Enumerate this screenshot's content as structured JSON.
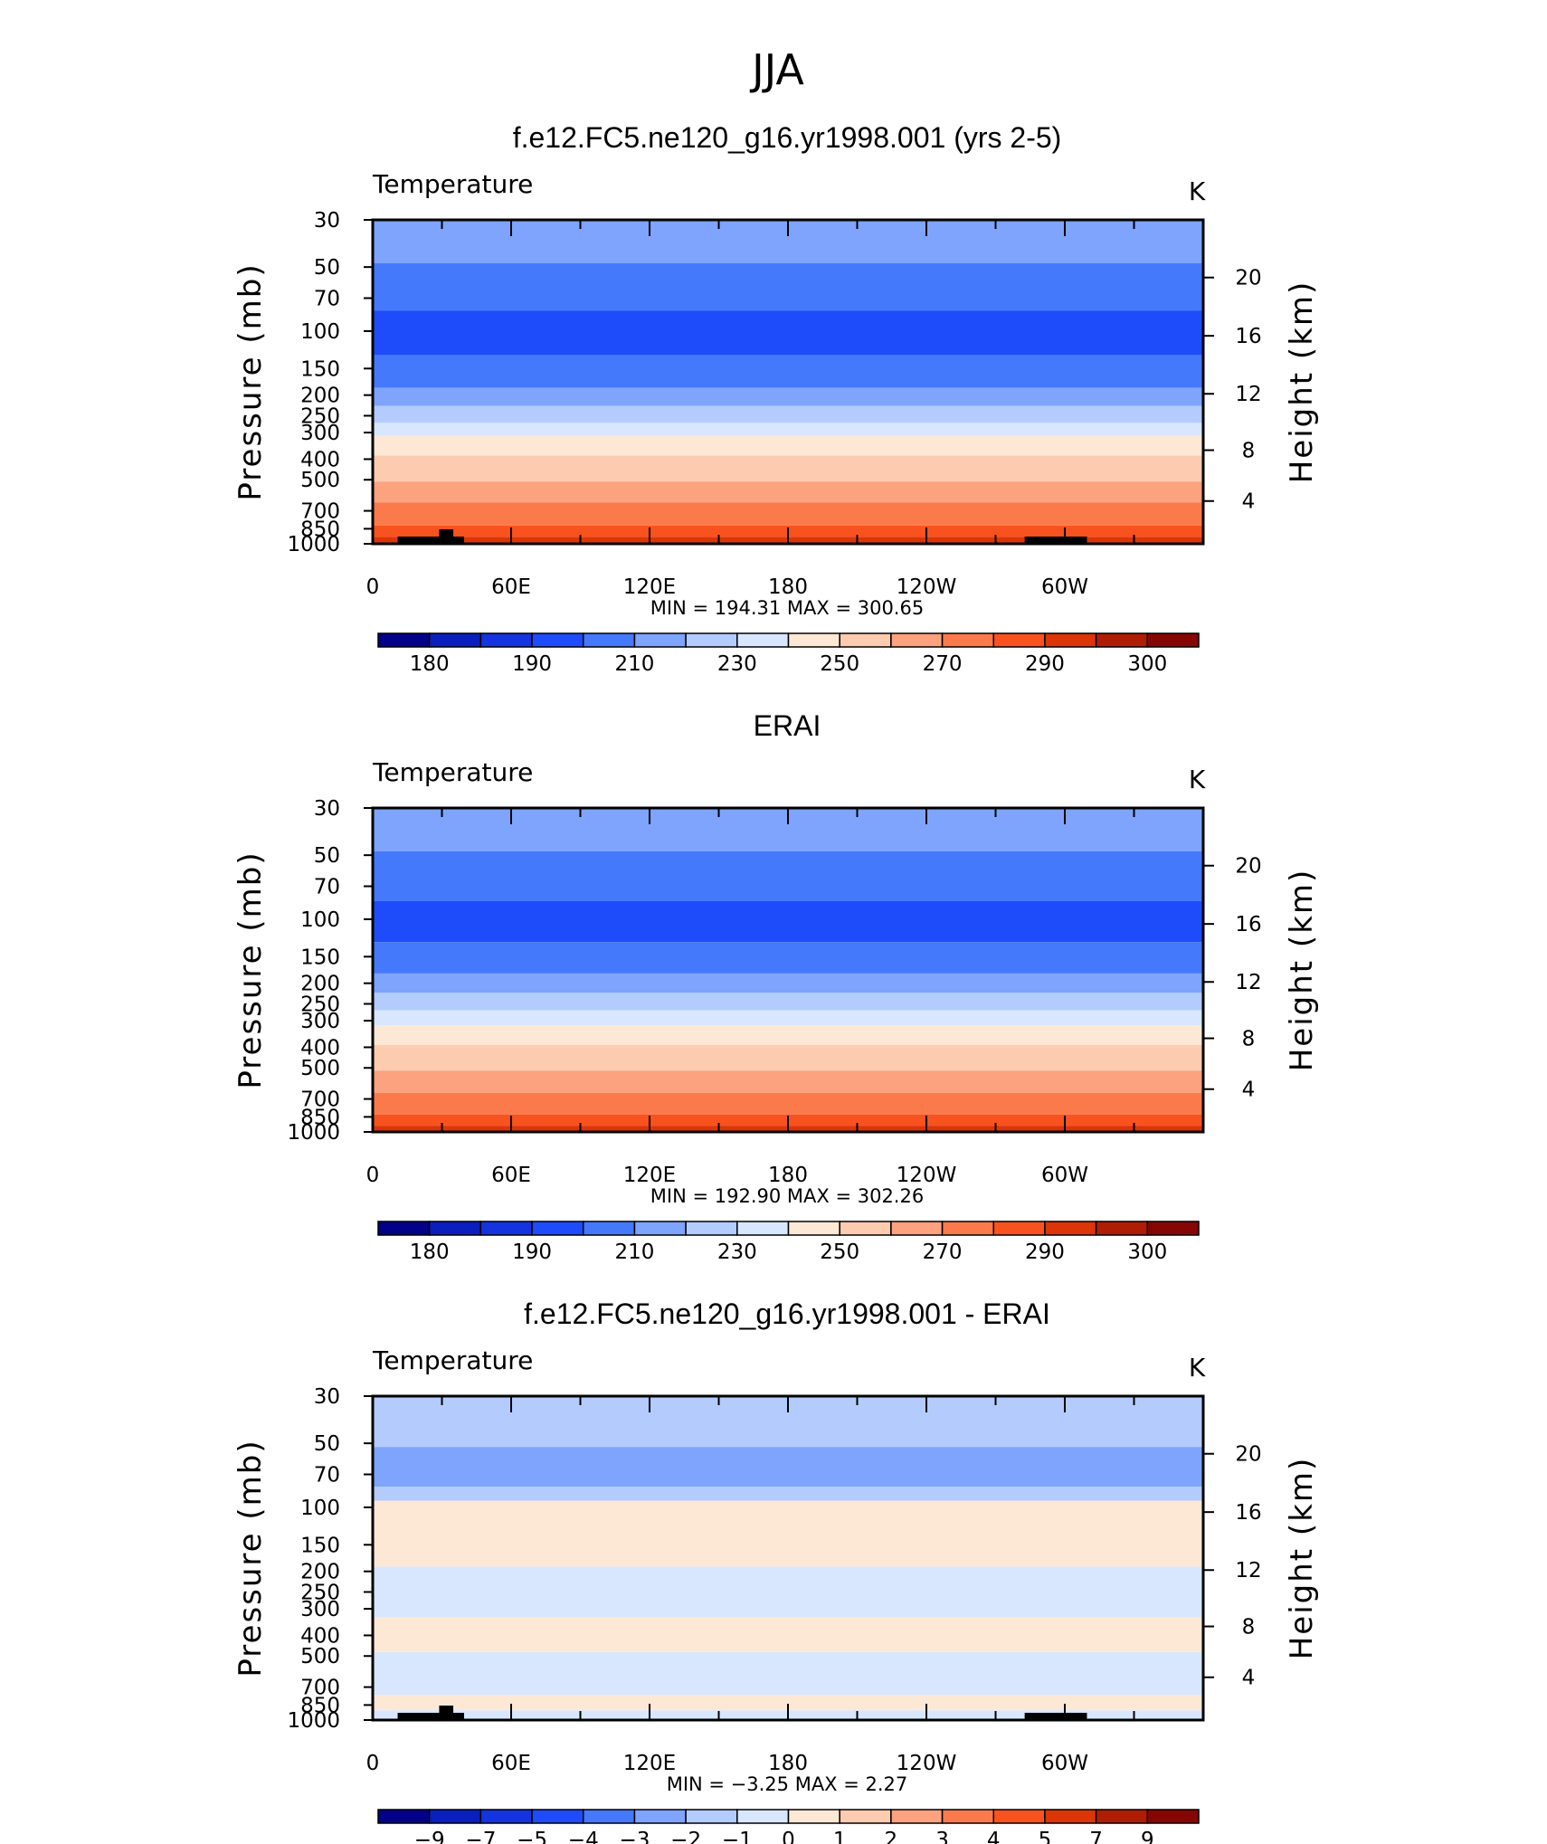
{
  "page": {
    "suptitle": "JJA"
  },
  "chart_data": [
    {
      "type": "heatmap",
      "title": "f.e12.FC5.ne120_g16.yr1998.001 (yrs 2-5)",
      "variable": "Temperature",
      "units": "K",
      "ylabel": "Pressure (mb)",
      "ylabel_right": "Height (km)",
      "x_tick_labels": [
        "0",
        "60E",
        "120E",
        "180",
        "120W",
        "60W"
      ],
      "y_tick_labels": [
        "30",
        "50",
        "70",
        "100",
        "150",
        "200",
        "250",
        "300",
        "400",
        "500",
        "700",
        "850",
        "1000"
      ],
      "right_tick_labels": [
        "20",
        "16",
        "12",
        "8",
        "4"
      ],
      "stats": "MIN  =  194.31    MAX  =  300.65",
      "min": 194.31,
      "max": 300.65,
      "colorbar_labels": [
        "180",
        "190",
        "210",
        "230",
        "250",
        "270",
        "290",
        "300"
      ],
      "colorbar_colors": [
        "#03008a",
        "#0a1fbe",
        "#1434e0",
        "#1e4cfa",
        "#4579fc",
        "#7ea4fd",
        "#b3cbfd",
        "#d8e7fe",
        "#fde8d6",
        "#fdcbb0",
        "#fca27e",
        "#fb7a4c",
        "#f8521f",
        "#dc3508",
        "#b01d05",
        "#860603"
      ],
      "bands": [
        {
          "top": 30,
          "color": "#7ea4fd"
        },
        {
          "top": 48,
          "color": "#4579fc"
        },
        {
          "top": 80,
          "color": "#1e4cfa"
        },
        {
          "top": 130,
          "color": "#4579fc"
        },
        {
          "top": 185,
          "color": "#7ea4fd"
        },
        {
          "top": 225,
          "color": "#b3cbfd"
        },
        {
          "top": 270,
          "color": "#d8e7fe"
        },
        {
          "top": 310,
          "color": "#fde8d6"
        },
        {
          "top": 385,
          "color": "#fdcbb0"
        },
        {
          "top": 510,
          "color": "#fca27e"
        },
        {
          "top": 640,
          "color": "#fb7a4c"
        },
        {
          "top": 820,
          "color": "#f8521f"
        },
        {
          "top": 930,
          "color": "#dc3508"
        },
        {
          "top": 985,
          "color": "#b01d05"
        }
      ],
      "terrain": true
    },
    {
      "type": "heatmap",
      "title": "ERAI",
      "variable": "Temperature",
      "units": "K",
      "ylabel": "Pressure (mb)",
      "ylabel_right": "Height (km)",
      "x_tick_labels": [
        "0",
        "60E",
        "120E",
        "180",
        "120W",
        "60W"
      ],
      "y_tick_labels": [
        "30",
        "50",
        "70",
        "100",
        "150",
        "200",
        "250",
        "300",
        "400",
        "500",
        "700",
        "850",
        "1000"
      ],
      "right_tick_labels": [
        "20",
        "16",
        "12",
        "8",
        "4"
      ],
      "stats": "MIN  =  192.90    MAX  =  302.26",
      "min": 192.9,
      "max": 302.26,
      "colorbar_labels": [
        "180",
        "190",
        "210",
        "230",
        "250",
        "270",
        "290",
        "300"
      ],
      "colorbar_colors": [
        "#03008a",
        "#0a1fbe",
        "#1434e0",
        "#1e4cfa",
        "#4579fc",
        "#7ea4fd",
        "#b3cbfd",
        "#d8e7fe",
        "#fde8d6",
        "#fdcbb0",
        "#fca27e",
        "#fb7a4c",
        "#f8521f",
        "#dc3508",
        "#b01d05",
        "#860603"
      ],
      "bands": [
        {
          "top": 30,
          "color": "#7ea4fd"
        },
        {
          "top": 48,
          "color": "#4579fc"
        },
        {
          "top": 82,
          "color": "#1e4cfa"
        },
        {
          "top": 128,
          "color": "#4579fc"
        },
        {
          "top": 180,
          "color": "#7ea4fd"
        },
        {
          "top": 222,
          "color": "#b3cbfd"
        },
        {
          "top": 268,
          "color": "#d8e7fe"
        },
        {
          "top": 315,
          "color": "#fde8d6"
        },
        {
          "top": 390,
          "color": "#fdcbb0"
        },
        {
          "top": 515,
          "color": "#fca27e"
        },
        {
          "top": 655,
          "color": "#fb7a4c"
        },
        {
          "top": 830,
          "color": "#f8521f"
        },
        {
          "top": 935,
          "color": "#dc3508"
        },
        {
          "top": 990,
          "color": "#b01d05"
        }
      ],
      "terrain": false
    },
    {
      "type": "heatmap",
      "title": "f.e12.FC5.ne120_g16.yr1998.001 - ERAI",
      "variable": "Temperature",
      "units": "K",
      "ylabel": "Pressure (mb)",
      "ylabel_right": "Height (km)",
      "x_tick_labels": [
        "0",
        "60E",
        "120E",
        "180",
        "120W",
        "60W"
      ],
      "y_tick_labels": [
        "30",
        "50",
        "70",
        "100",
        "150",
        "200",
        "250",
        "300",
        "400",
        "500",
        "700",
        "850",
        "1000"
      ],
      "right_tick_labels": [
        "20",
        "16",
        "12",
        "8",
        "4"
      ],
      "stats": "MIN  =    −3.25    MAX  =      2.27",
      "min": -3.25,
      "max": 2.27,
      "colorbar_labels": [
        "−9",
        "−7",
        "−5",
        "−4",
        "−3",
        "−2",
        "−1",
        "0",
        "1",
        "2",
        "3",
        "4",
        "5",
        "7",
        "9"
      ],
      "colorbar_colors": [
        "#03008a",
        "#0a1fbe",
        "#1434e0",
        "#1e4cfa",
        "#4579fc",
        "#7ea4fd",
        "#b3cbfd",
        "#d8e7fe",
        "#fde8d6",
        "#fdcbb0",
        "#fca27e",
        "#fb7a4c",
        "#f8521f",
        "#dc3508",
        "#b01d05",
        "#860603"
      ],
      "bands": [
        {
          "top": 30,
          "color": "#b3cbfd"
        },
        {
          "top": 52,
          "color": "#7ea4fd"
        },
        {
          "top": 80,
          "color": "#b3cbfd"
        },
        {
          "top": 93,
          "color": "#fde8d6"
        },
        {
          "top": 190,
          "color": "#d8e7fe"
        },
        {
          "top": 330,
          "color": "#fde8d6"
        },
        {
          "top": 480,
          "color": "#d8e7fe"
        },
        {
          "top": 760,
          "color": "#fde8d6"
        },
        {
          "top": 900,
          "color": "#d8e7fe"
        }
      ],
      "terrain": true
    }
  ]
}
